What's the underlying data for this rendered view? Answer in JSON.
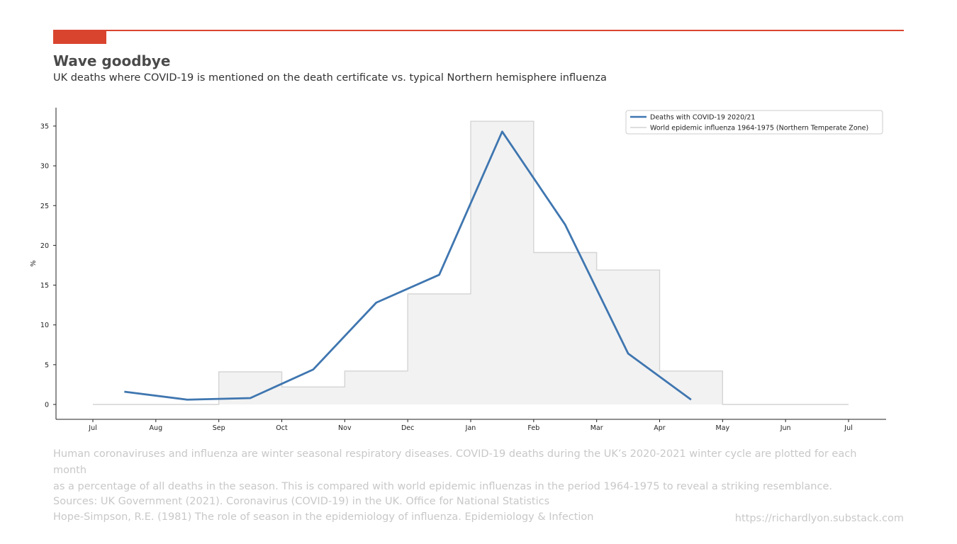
{
  "header": {
    "title": "Wave goodbye",
    "subtitle": "UK deaths where COVID-19 is mentioned on the death certificate vs. typical Northern hemisphere influenza"
  },
  "colors": {
    "accent": "#d9442f",
    "covid_line": "#3f76b0",
    "flu_fill": "#f2f2f2",
    "flu_edge": "#d4d4d4",
    "footnote_text": "#c8c8c8"
  },
  "chart_data": {
    "type": "line",
    "ylabel": "%",
    "xlabel": "",
    "ylim": [
      -2,
      37.5
    ],
    "yticks": [
      0,
      5,
      10,
      15,
      20,
      25,
      30,
      35
    ],
    "xticks": [
      "Jul",
      "Aug",
      "Sep",
      "Oct",
      "Nov",
      "Dec",
      "Jan",
      "Feb",
      "Mar",
      "Apr",
      "May",
      "Jun",
      "Jul"
    ],
    "grid": false,
    "legend_position": "top-right",
    "series": [
      {
        "name": "Deaths with COVID-19 2020/21",
        "kind": "line",
        "x": [
          "Jul (mid)",
          "Aug (mid)",
          "Sep (mid)",
          "Oct (mid)",
          "Nov (mid)",
          "Dec (mid)",
          "Jan (mid)",
          "Feb (mid)",
          "Mar (mid)",
          "Apr (mid)"
        ],
        "x_month_index": [
          0.5,
          1.5,
          2.5,
          3.5,
          4.5,
          5.5,
          6.5,
          7.5,
          8.5,
          9.5
        ],
        "values": [
          1.6,
          0.6,
          0.8,
          4.4,
          12.8,
          16.3,
          34.3,
          22.6,
          6.4,
          0.6
        ]
      },
      {
        "name": "World epidemic influenza 1964-1975 (Northern Temperate Zone)",
        "kind": "step-area",
        "x_month_index": [
          0,
          1,
          2,
          3,
          4,
          5,
          6,
          7,
          8,
          9,
          10,
          11,
          12
        ],
        "month_starts": [
          "Jul",
          "Aug",
          "Sep",
          "Oct",
          "Nov",
          "Dec",
          "Jan",
          "Feb",
          "Mar",
          "Apr",
          "May",
          "Jun",
          "Jul"
        ],
        "values": [
          0,
          0,
          4.1,
          2.2,
          4.2,
          13.9,
          35.6,
          19.1,
          16.9,
          4.2,
          0,
          0,
          0
        ]
      }
    ]
  },
  "footer": {
    "description_line1": "Human coronaviruses and influenza are winter seasonal respiratory diseases. COVID-19 deaths during the UK’s 2020-2021 winter cycle are plotted for each month",
    "description_line2": "as a percentage of all deaths in the season. This is compared with world epidemic influenzas in the period 1964-1975 to reveal a striking resemblance.",
    "source_line1": "Sources: UK Government (2021). Coronavirus (COVID-19) in the UK. Office for National Statistics",
    "source_line2": "Hope-Simpson, R.E. (1981) The role of season in the epidemiology of influenza. Epidemiology & Infection",
    "url": "https://richardlyon.substack.com"
  }
}
